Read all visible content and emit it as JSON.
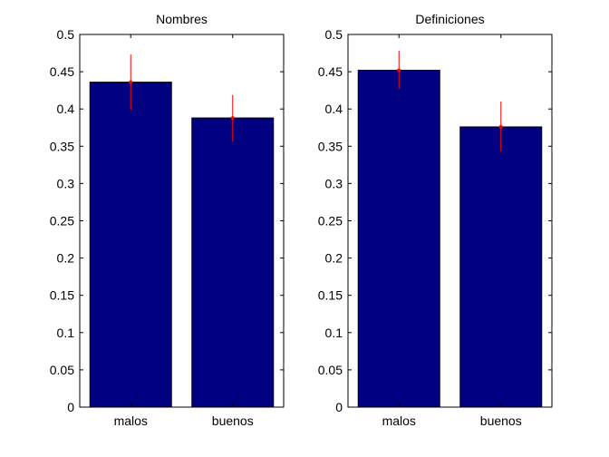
{
  "chart_data": [
    {
      "type": "bar",
      "title": "Nombres",
      "categories": [
        "malos",
        "buenos"
      ],
      "values": [
        0.436,
        0.388
      ],
      "error_low": [
        0.399,
        0.356
      ],
      "error_high": [
        0.473,
        0.419
      ],
      "ylim": [
        0,
        0.5
      ],
      "yticks": [
        "0",
        "0.05",
        "0.1",
        "0.15",
        "0.2",
        "0.25",
        "0.3",
        "0.35",
        "0.4",
        "0.45",
        "0.5"
      ],
      "grid": false,
      "bar_color": "#000080",
      "error_color": "#ff0000"
    },
    {
      "type": "bar",
      "title": "Definiciones",
      "categories": [
        "malos",
        "buenos"
      ],
      "values": [
        0.452,
        0.376
      ],
      "error_low": [
        0.427,
        0.343
      ],
      "error_high": [
        0.478,
        0.41
      ],
      "ylim": [
        0,
        0.5
      ],
      "yticks": [
        "0",
        "0.05",
        "0.1",
        "0.15",
        "0.2",
        "0.25",
        "0.3",
        "0.35",
        "0.4",
        "0.45",
        "0.5"
      ],
      "grid": false,
      "bar_color": "#000080",
      "error_color": "#ff0000"
    }
  ]
}
